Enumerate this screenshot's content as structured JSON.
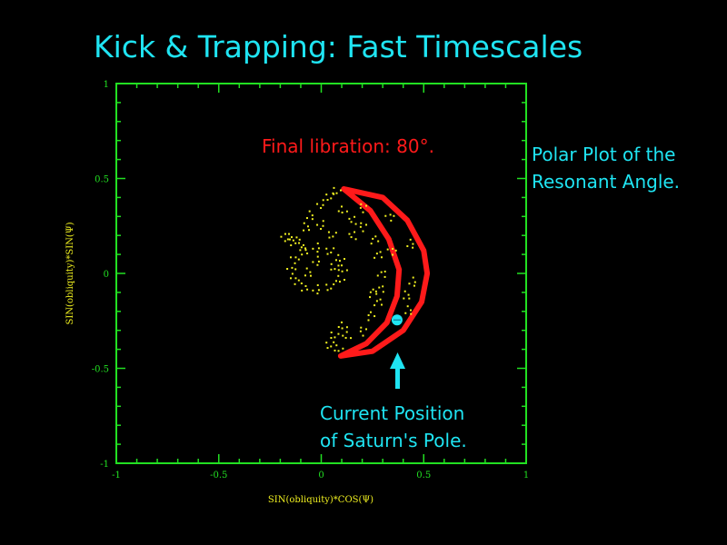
{
  "slide": {
    "title": "Kick & Trapping: Fast Timescales",
    "side_note": [
      "Polar Plot of the",
      "Resonant Angle."
    ],
    "pole_label": [
      "Current Position",
      "of Saturn's Pole."
    ]
  },
  "colors": {
    "title": "#1fe4f2",
    "axes": "#22e022",
    "axis_labels": "#f0f020",
    "trapped": "#ff1a1a",
    "scatter": "#f0f020",
    "pole": "#1fe4f2"
  },
  "chart_data": {
    "type": "scatter",
    "xlabel": "SIN(obliquity)*COS(Ψ)",
    "ylabel": "SIN(obliquity)*SIN(Ψ)",
    "xlim": [
      -1,
      1
    ],
    "ylim": [
      -1,
      1
    ],
    "xticks": [
      "-1",
      "-0.5",
      "0",
      "0.5",
      "1"
    ],
    "yticks": [
      "1",
      "0.5",
      "0",
      "-0.5",
      "-1"
    ],
    "grid": false,
    "annotation": "Final libration: 80°.",
    "series": [
      {
        "color": "#ff1a1a",
        "style": "trajectory",
        "points": [
          [
            0.11,
            0.445
          ],
          [
            0.3,
            0.4
          ],
          [
            0.42,
            0.28
          ],
          [
            0.5,
            0.12
          ],
          [
            0.517,
            0.0
          ],
          [
            0.49,
            -0.15
          ],
          [
            0.4,
            -0.3
          ],
          [
            0.25,
            -0.41
          ],
          [
            0.095,
            -0.435
          ],
          [
            0.22,
            -0.37
          ],
          [
            0.32,
            -0.26
          ],
          [
            0.37,
            -0.12
          ],
          [
            0.38,
            0.02
          ],
          [
            0.33,
            0.18
          ],
          [
            0.24,
            0.33
          ],
          [
            0.11,
            0.445
          ]
        ]
      },
      {
        "color": "#f0f020",
        "style": "scatter",
        "points": [
          [
            0.1,
            0.02
          ],
          [
            0.087,
            0.075
          ],
          [
            0.04,
            0.115
          ],
          [
            -0.02,
            0.13
          ],
          [
            -0.08,
            0.115
          ],
          [
            -0.124,
            0.075
          ],
          [
            -0.14,
            0.02
          ],
          [
            -0.124,
            -0.035
          ],
          [
            -0.08,
            -0.075
          ],
          [
            -0.02,
            -0.09
          ],
          [
            0.04,
            -0.075
          ],
          [
            0.087,
            -0.035
          ],
          [
            0.06,
            0.03
          ],
          [
            -0.06,
            0.0
          ],
          [
            -0.02,
            0.06
          ],
          [
            -0.17,
            0.2
          ],
          [
            -0.15,
            0.17
          ],
          [
            -0.12,
            0.18
          ],
          [
            -0.09,
            0.14
          ],
          [
            -0.07,
            0.24
          ],
          [
            -0.05,
            0.3
          ],
          [
            0.0,
            0.36
          ],
          [
            0.04,
            0.4
          ],
          [
            0.07,
            0.43
          ],
          [
            0.1,
            0.33
          ],
          [
            0.15,
            0.28
          ],
          [
            0.2,
            0.25
          ],
          [
            0.26,
            0.18
          ],
          [
            0.28,
            0.1
          ],
          [
            0.3,
            0.0
          ],
          [
            0.29,
            -0.08
          ],
          [
            0.28,
            -0.15
          ],
          [
            0.24,
            -0.22
          ],
          [
            0.2,
            -0.3
          ],
          [
            0.1,
            -0.28
          ],
          [
            0.06,
            -0.33
          ],
          [
            0.04,
            -0.38
          ],
          [
            0.08,
            -0.4
          ],
          [
            0.12,
            -0.33
          ],
          [
            0.35,
            0.12
          ],
          [
            0.44,
            0.15
          ],
          [
            0.45,
            -0.05
          ],
          [
            0.42,
            -0.12
          ],
          [
            0.43,
            -0.2
          ],
          [
            0.15,
            0.2
          ],
          [
            0.25,
            -0.1
          ],
          [
            0.2,
            0.35
          ],
          [
            0.34,
            0.3
          ],
          [
            0.0,
            0.25
          ],
          [
            0.05,
            0.2
          ]
        ]
      },
      {
        "color": "#1fe4f2",
        "style": "marker",
        "label": "Current Position of Saturn's Pole.",
        "points": [
          [
            0.37,
            -0.245
          ]
        ]
      }
    ]
  }
}
